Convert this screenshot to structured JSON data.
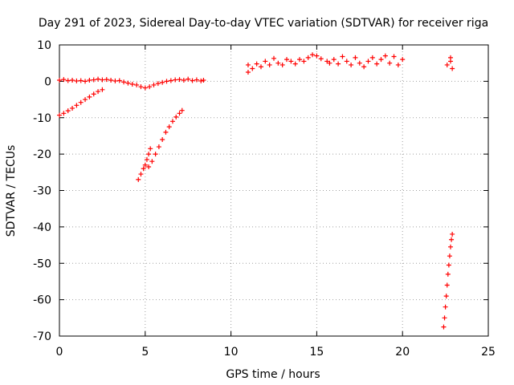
{
  "chart_data": {
    "type": "scatter",
    "title": "Day 291 of 2023, Sidereal Day-to-day VTEC variation (SDTVAR) for receiver riga",
    "xlabel": "GPS time / hours",
    "ylabel": "SDTVAR / TECUs",
    "xlim": [
      0,
      25
    ],
    "ylim": [
      -70,
      10
    ],
    "xticks": [
      0,
      5,
      10,
      15,
      20,
      25
    ],
    "yticks": [
      -70,
      -60,
      -50,
      -40,
      -30,
      -20,
      -10,
      0,
      10
    ],
    "grid": true,
    "marker": "plus",
    "color": "#ff0000",
    "series": [
      {
        "points": [
          [
            0.0,
            0.3
          ],
          [
            0.25,
            0.5
          ],
          [
            0.5,
            0.2
          ],
          [
            0.75,
            0.3
          ],
          [
            1.0,
            0.1
          ],
          [
            1.25,
            0.2
          ],
          [
            1.5,
            0.0
          ],
          [
            1.75,
            0.3
          ],
          [
            2.0,
            0.4
          ],
          [
            2.25,
            0.6
          ],
          [
            2.5,
            0.4
          ],
          [
            2.75,
            0.5
          ],
          [
            3.0,
            0.3
          ],
          [
            3.25,
            0.1
          ],
          [
            3.5,
            0.2
          ],
          [
            3.75,
            -0.2
          ],
          [
            4.0,
            -0.5
          ],
          [
            4.25,
            -0.8
          ],
          [
            4.5,
            -1.0
          ],
          [
            4.75,
            -1.5
          ],
          [
            5.0,
            -1.8
          ],
          [
            5.25,
            -1.5
          ],
          [
            5.5,
            -1.0
          ],
          [
            5.75,
            -0.6
          ],
          [
            6.0,
            -0.3
          ],
          [
            6.25,
            0.0
          ],
          [
            6.5,
            0.2
          ],
          [
            6.75,
            0.4
          ],
          [
            7.0,
            0.5
          ],
          [
            7.25,
            0.3
          ],
          [
            7.5,
            0.6
          ],
          [
            7.75,
            0.2
          ],
          [
            8.0,
            0.4
          ],
          [
            8.25,
            0.1
          ],
          [
            8.4,
            0.3
          ],
          [
            0.0,
            -9.3
          ],
          [
            0.25,
            -8.8
          ],
          [
            0.5,
            -8.1
          ],
          [
            0.75,
            -7.4
          ],
          [
            1.0,
            -6.6
          ],
          [
            1.25,
            -5.8
          ],
          [
            1.5,
            -5.0
          ],
          [
            1.75,
            -4.3
          ],
          [
            2.0,
            -3.5
          ],
          [
            2.25,
            -2.8
          ],
          [
            2.5,
            -2.3
          ],
          [
            4.6,
            -27.0
          ],
          [
            4.75,
            -25.5
          ],
          [
            4.9,
            -24.0
          ],
          [
            5.0,
            -23.0
          ],
          [
            5.1,
            -21.5
          ],
          [
            5.2,
            -20.0
          ],
          [
            5.3,
            -18.5
          ],
          [
            5.2,
            -23.5
          ],
          [
            5.4,
            -22.0
          ],
          [
            5.6,
            -20.0
          ],
          [
            5.8,
            -18.0
          ],
          [
            6.0,
            -16.0
          ],
          [
            6.2,
            -14.0
          ],
          [
            6.4,
            -12.5
          ],
          [
            6.6,
            -11.0
          ],
          [
            6.8,
            -9.8
          ],
          [
            7.0,
            -8.8
          ],
          [
            7.15,
            -8.0
          ],
          [
            11.0,
            2.5
          ],
          [
            11.0,
            4.5
          ],
          [
            11.25,
            3.5
          ],
          [
            11.5,
            4.8
          ],
          [
            11.75,
            4.0
          ],
          [
            12.0,
            5.5
          ],
          [
            12.25,
            4.5
          ],
          [
            12.5,
            6.3
          ],
          [
            12.75,
            5.0
          ],
          [
            13.0,
            4.5
          ],
          [
            13.25,
            6.0
          ],
          [
            13.5,
            5.5
          ],
          [
            13.75,
            4.8
          ],
          [
            14.0,
            6.0
          ],
          [
            14.25,
            5.5
          ],
          [
            14.5,
            6.5
          ],
          [
            14.75,
            7.3
          ],
          [
            15.0,
            7.0
          ],
          [
            15.25,
            6.2
          ],
          [
            15.6,
            5.5
          ],
          [
            15.75,
            5.0
          ],
          [
            16.0,
            6.0
          ],
          [
            16.25,
            4.8
          ],
          [
            16.5,
            6.8
          ],
          [
            16.75,
            5.5
          ],
          [
            17.0,
            4.5
          ],
          [
            17.25,
            6.5
          ],
          [
            17.5,
            5.0
          ],
          [
            17.75,
            4.0
          ],
          [
            18.0,
            5.5
          ],
          [
            18.25,
            6.5
          ],
          [
            18.5,
            4.8
          ],
          [
            18.75,
            6.0
          ],
          [
            19.0,
            7.0
          ],
          [
            19.25,
            5.0
          ],
          [
            19.5,
            6.8
          ],
          [
            19.75,
            4.5
          ],
          [
            20.0,
            6.0
          ],
          [
            22.6,
            4.5
          ],
          [
            22.8,
            5.5
          ],
          [
            22.9,
            3.5
          ],
          [
            22.8,
            6.5
          ],
          [
            22.4,
            -67.5
          ],
          [
            22.45,
            -65.0
          ],
          [
            22.5,
            -62.0
          ],
          [
            22.55,
            -59.0
          ],
          [
            22.6,
            -56.0
          ],
          [
            22.65,
            -53.0
          ],
          [
            22.7,
            -50.5
          ],
          [
            22.75,
            -48.0
          ],
          [
            22.8,
            -45.5
          ],
          [
            22.85,
            -43.5
          ],
          [
            22.9,
            -42.0
          ]
        ]
      }
    ]
  }
}
